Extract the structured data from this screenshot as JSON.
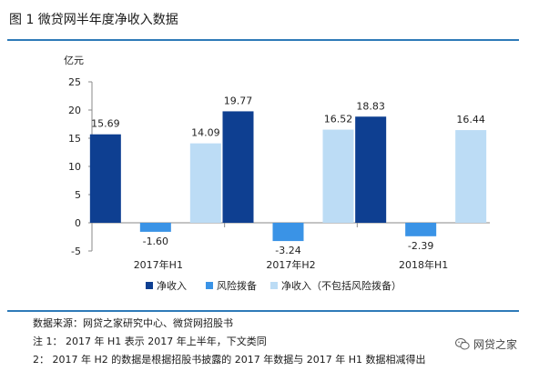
{
  "figure": {
    "title": "图 1 微贷网半年度净收入数据"
  },
  "chart_data": {
    "type": "bar",
    "ylabel": "亿元",
    "ylim": [
      -5,
      25
    ],
    "yticks": [
      -5,
      0,
      5,
      10,
      15,
      20,
      25
    ],
    "categories": [
      "2017年H1",
      "2017年H2",
      "2018年H1"
    ],
    "series": [
      {
        "name": "净收入",
        "color": "#0e3f91",
        "values": [
          15.69,
          19.77,
          18.83
        ],
        "labels": [
          "15.69",
          "19.77",
          "18.83"
        ]
      },
      {
        "name": "风险拨备",
        "color": "#3a93e6",
        "values": [
          -1.6,
          -3.24,
          -2.39
        ],
        "labels": [
          "-1.60",
          "-3.24",
          "-2.39"
        ]
      },
      {
        "name": "净收入（不包括风险拨备）",
        "color": "#bcdcf5",
        "values": [
          14.09,
          16.52,
          16.44
        ],
        "labels": [
          "14.09",
          "16.52",
          "16.44"
        ]
      }
    ],
    "legend_position": "bottom",
    "grid": false
  },
  "notes": {
    "source": "数据来源：网贷之家研究中心、微贷网招股书",
    "note1": "注 1：  2017 年 H1 表示 2017 年上半年，下文类同",
    "note2": "2：  2017 年 H2 的数据是根据招股书披露的 2017 年数据与 2017 年 H1 数据相减得出"
  },
  "watermark": {
    "text": "网贷之家",
    "icon": "wechat-icon"
  }
}
